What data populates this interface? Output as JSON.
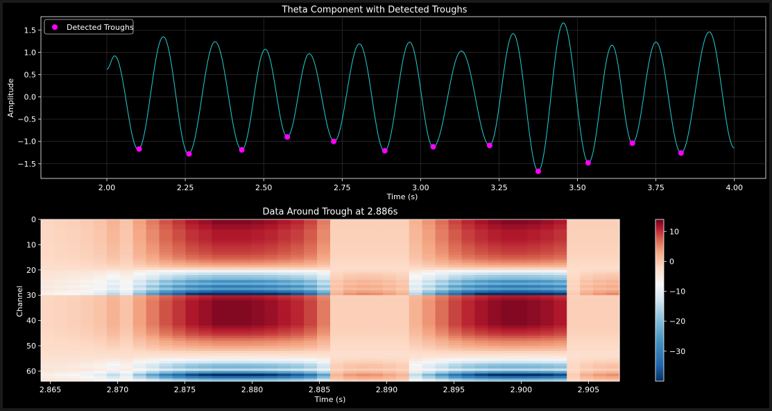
{
  "chart_data": [
    {
      "type": "line",
      "title": "Theta Component with Detected Troughs",
      "xlabel": "Time (s)",
      "ylabel": "Amplitude",
      "xlim": [
        1.79,
        4.1
      ],
      "ylim": [
        -1.83,
        1.8
      ],
      "xticks": [
        2.0,
        2.25,
        2.5,
        2.75,
        3.0,
        3.25,
        3.5,
        3.75,
        4.0
      ],
      "xtick_labels": [
        "2.00",
        "2.25",
        "2.50",
        "2.75",
        "3.00",
        "3.25",
        "3.50",
        "3.75",
        "4.00"
      ],
      "yticks": [
        -1.5,
        -1.0,
        -0.5,
        0.0,
        0.5,
        1.0,
        1.5
      ],
      "ytick_labels": [
        "−1.5",
        "−1.0",
        "−0.5",
        "0.0",
        "0.5",
        "1.0",
        "1.5"
      ],
      "grid": true,
      "legend_position": "top-left",
      "series": [
        {
          "kind": "line",
          "color": "#22d3d3",
          "keypoints": [
            [
              2.0,
              0.62
            ],
            [
              2.025,
              0.92
            ],
            [
              2.1,
              -1.18
            ],
            [
              2.18,
              1.35
            ],
            [
              2.26,
              -1.28
            ],
            [
              2.345,
              1.24
            ],
            [
              2.43,
              -1.19
            ],
            [
              2.505,
              1.07
            ],
            [
              2.575,
              -0.9
            ],
            [
              2.645,
              0.97
            ],
            [
              2.725,
              -1.0
            ],
            [
              2.805,
              1.19
            ],
            [
              2.885,
              -1.22
            ],
            [
              2.965,
              1.23
            ],
            [
              3.04,
              -1.13
            ],
            [
              3.13,
              1.03
            ],
            [
              3.22,
              -1.09
            ],
            [
              3.295,
              1.42
            ],
            [
              3.375,
              -1.67
            ],
            [
              3.455,
              1.66
            ],
            [
              3.535,
              -1.48
            ],
            [
              3.61,
              1.16
            ],
            [
              3.675,
              -1.04
            ],
            [
              3.75,
              1.23
            ],
            [
              3.83,
              -1.26
            ],
            [
              3.92,
              1.46
            ],
            [
              4.0,
              -1.15
            ]
          ]
        },
        {
          "kind": "scatter",
          "name": "Detected Troughs",
          "color": "#ff00ff",
          "x": [
            2.103,
            2.262,
            2.43,
            2.575,
            2.723,
            2.886,
            3.04,
            3.22,
            3.375,
            3.534,
            3.675,
            3.83
          ],
          "y": [
            -1.17,
            -1.28,
            -1.19,
            -0.9,
            -1.0,
            -1.21,
            -1.12,
            -1.09,
            -1.67,
            -1.48,
            -1.04,
            -1.26
          ]
        }
      ]
    },
    {
      "type": "heatmap",
      "title": "Data Around Trough at 2.886s",
      "xlabel": "Time (s)",
      "ylabel": "Channel",
      "xlim": [
        2.8643,
        2.9073
      ],
      "ylim": [
        64,
        0
      ],
      "xticks": [
        2.865,
        2.87,
        2.875,
        2.88,
        2.885,
        2.89,
        2.895,
        2.9,
        2.905
      ],
      "xtick_labels": [
        "2.865",
        "2.870",
        "2.875",
        "2.880",
        "2.885",
        "2.890",
        "2.895",
        "2.900",
        "2.905"
      ],
      "yticks": [
        0,
        10,
        20,
        30,
        40,
        50,
        60
      ],
      "ytick_labels": [
        "0",
        "10",
        "20",
        "30",
        "40",
        "50",
        "60"
      ],
      "n_time_bins": 44,
      "n_channels": 64,
      "time_envelope": [
        0.08,
        0.1,
        0.12,
        0.15,
        0.2,
        0.3,
        0.2,
        0.4,
        0.55,
        0.7,
        0.8,
        0.9,
        0.95,
        1.0,
        1.0,
        1.0,
        0.98,
        0.95,
        0.9,
        0.85,
        0.75,
        0.55,
        0.3,
        0.15,
        0.1,
        0.08,
        0.1,
        0.15,
        0.3,
        0.45,
        0.6,
        0.75,
        0.85,
        0.92,
        0.97,
        1.0,
        1.0,
        0.98,
        0.95,
        0.9,
        0.8,
        0.55,
        0.3,
        0.2
      ],
      "negative_envelope": [
        0.0,
        0.0,
        0.0,
        0.0,
        0.0,
        0.0,
        0.0,
        0.0,
        0.0,
        0.0,
        0.0,
        0.0,
        0.0,
        0.0,
        0.0,
        0.0,
        0.0,
        0.0,
        0.0,
        0.0,
        0.0,
        0.0,
        -0.6,
        -0.9,
        -1.0,
        -0.95,
        -0.8,
        -0.6,
        0.0,
        0.0,
        0.0,
        0.0,
        0.0,
        0.0,
        0.0,
        0.0,
        0.0,
        0.0,
        0.0,
        0.0,
        -0.3,
        -0.7,
        -0.9,
        -1.0
      ],
      "channel_profile": [
        1.0,
        1.0,
        0.95,
        0.95,
        0.9,
        0.9,
        0.9,
        0.9,
        0.88,
        0.85,
        0.82,
        0.8,
        0.78,
        0.75,
        0.7,
        0.65,
        0.55,
        0.45,
        0.3,
        0.1,
        -0.3,
        -0.55,
        -0.75,
        -0.85,
        -1.2,
        -1.0,
        -1.4,
        -1.1,
        -1.6,
        -2.0,
        0.9,
        0.95,
        1.0,
        1.0,
        1.0,
        1.0,
        1.0,
        1.0,
        1.0,
        1.0,
        1.0,
        1.0,
        0.95,
        0.9,
        0.85,
        0.8,
        0.7,
        0.6,
        0.5,
        0.45,
        0.35,
        0.25,
        0.1,
        0.0,
        -0.1,
        -0.3,
        -0.5,
        -0.8,
        -0.9,
        -0.6,
        -1.2,
        -1.9,
        -1.5,
        -0.9
      ],
      "peak_value": 13,
      "baseline_value": -3,
      "colormap": "RdBu_r",
      "clim": [
        -40,
        14
      ],
      "colorbar": {
        "ticks": [
          10,
          0,
          -10,
          -20,
          -30
        ],
        "tick_labels": [
          "10",
          "0",
          "−10",
          "−20",
          "−30"
        ]
      }
    }
  ]
}
